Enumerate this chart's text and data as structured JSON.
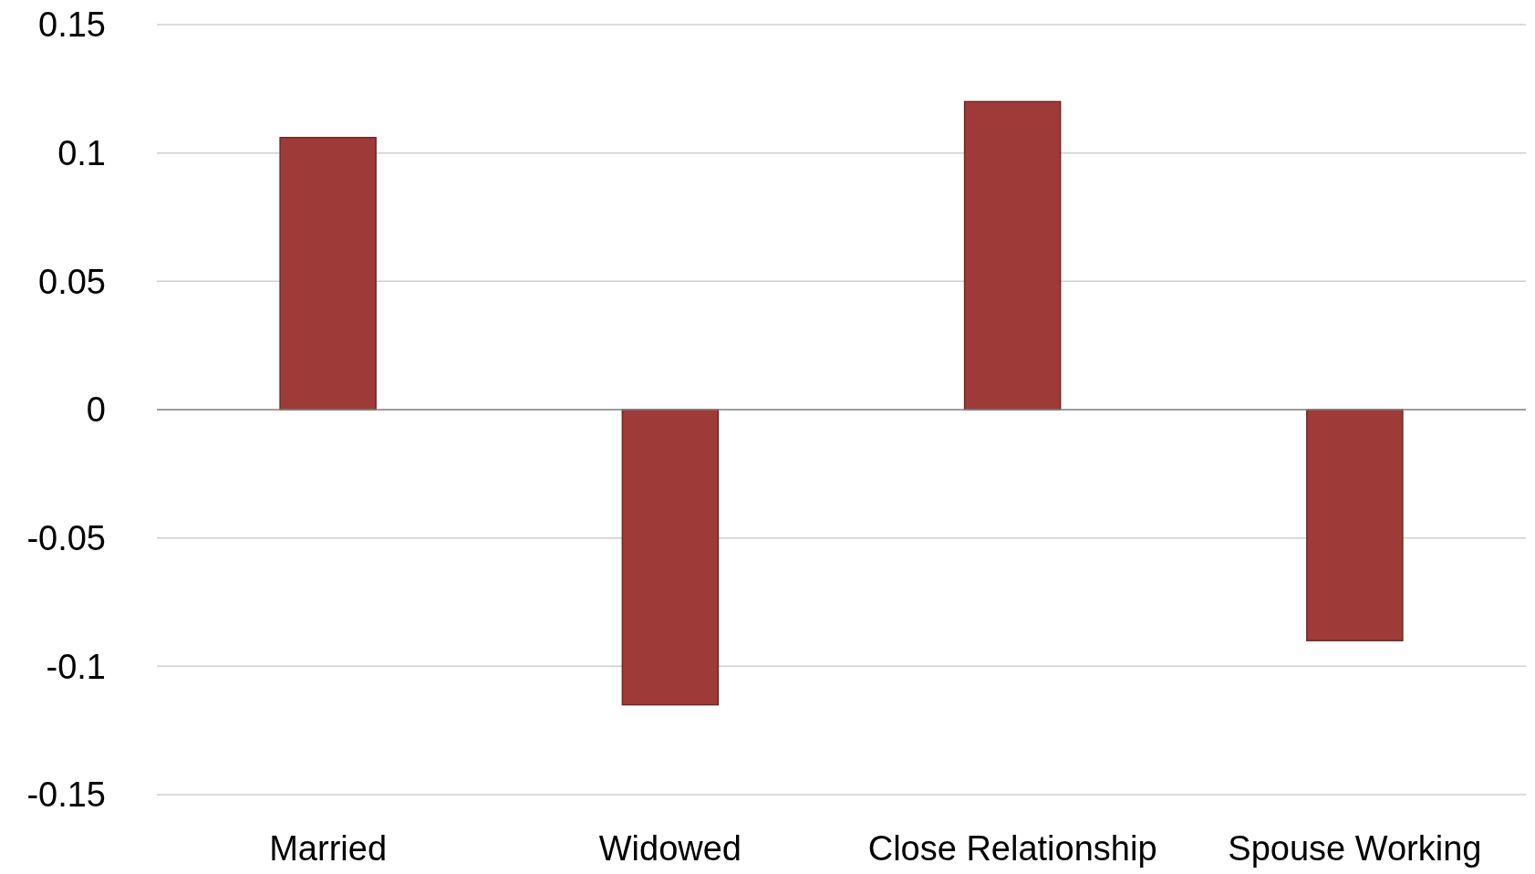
{
  "chart_data": {
    "type": "bar",
    "categories": [
      "Married",
      "Widowed",
      "Close Relationship",
      "Spouse Working"
    ],
    "values": [
      0.106,
      -0.115,
      0.12,
      -0.09
    ],
    "color": "#9e3b38",
    "ylim": [
      -0.15,
      0.15
    ],
    "yticks": [
      {
        "value": -0.15,
        "label": "-0.15"
      },
      {
        "value": -0.1,
        "label": "-0.1"
      },
      {
        "value": -0.05,
        "label": "-0.05"
      },
      0,
      0.05,
      {
        "value": 0.1,
        "label": "0.1"
      },
      0.15
    ],
    "grid": "y"
  }
}
